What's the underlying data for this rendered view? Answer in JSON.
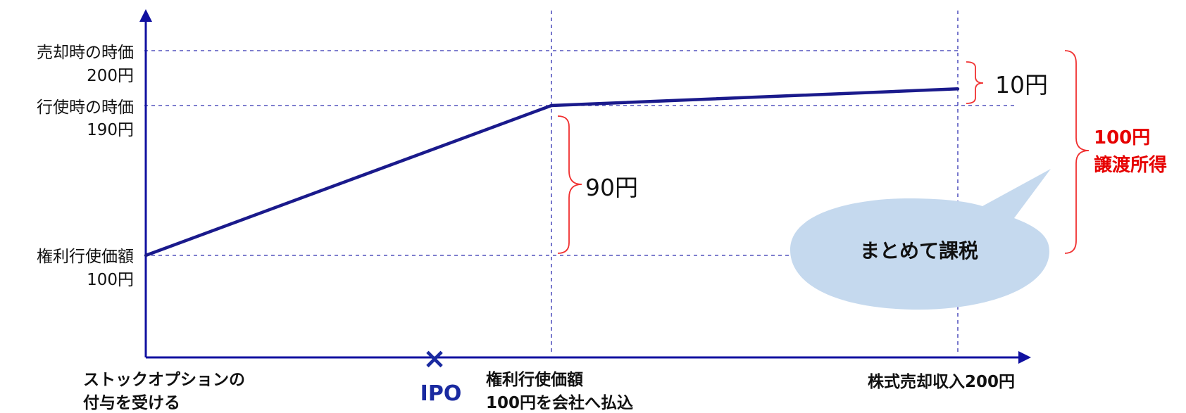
{
  "y_labels": {
    "sale_price": {
      "line1": "売却時の時価",
      "line2": "200円"
    },
    "exercise_price": {
      "line1": "行使時の時価",
      "line2": "190円"
    },
    "strike": {
      "line1": "権利行使価額",
      "line2": "100円"
    }
  },
  "x_labels": {
    "grant": {
      "line1": "ストックオプションの",
      "line2": "付与を受ける"
    },
    "ipo": {
      "mark": "×",
      "label": "IPO"
    },
    "exercise": {
      "line1": "権利行使価額",
      "line2": "100円を会社へ払込"
    },
    "sale": {
      "line1": "株式売却収入200円"
    }
  },
  "annotations": {
    "ninety": "90円",
    "ten": "10円",
    "capital_gain": {
      "line1": "100円",
      "line2": "譲渡所得"
    },
    "bubble": "まとめて課税"
  },
  "chart_data": {
    "type": "line",
    "x": [
      "付与",
      "権利行使",
      "売却"
    ],
    "series": [
      {
        "values": [
          100,
          190,
          200
        ]
      }
    ]
  },
  "colors": {
    "line": "#1a1a8c",
    "axis": "#1010a0",
    "dash": "#3030b0",
    "red": "#e60000",
    "brace": "#f03030",
    "bubble": "#c5d9ee",
    "ipo": "#1a2aa0"
  }
}
